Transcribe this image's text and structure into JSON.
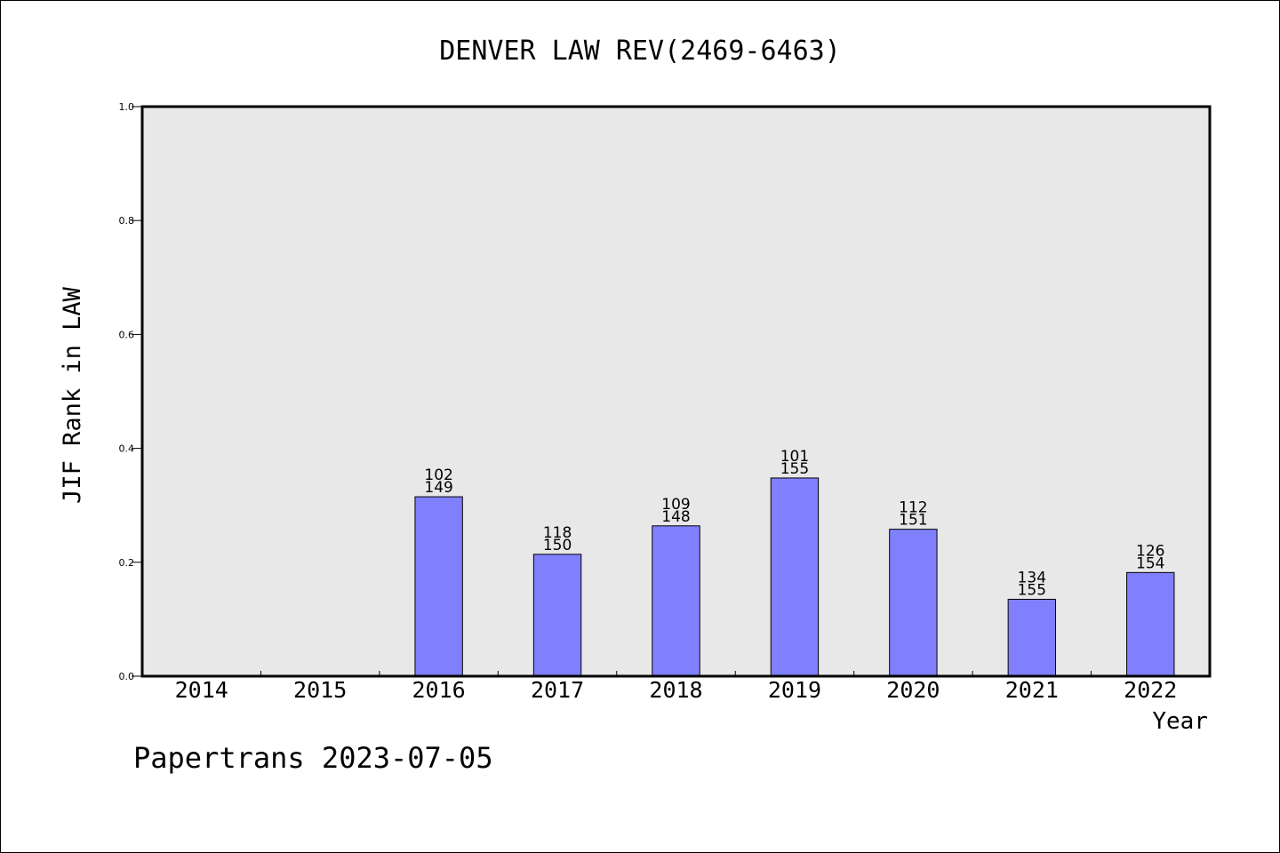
{
  "chart_data": {
    "type": "bar",
    "title": "DENVER LAW REV(2469-6463)",
    "xlabel": "Year",
    "ylabel": "JIF Rank in LAW",
    "footer": "Papertrans 2023-07-05",
    "ylim": [
      0,
      1.0
    ],
    "yticks": [
      "0.0",
      "0.2",
      "0.4",
      "0.6",
      "0.8",
      "1.0"
    ],
    "categories": [
      "2014",
      "2015",
      "2016",
      "2017",
      "2018",
      "2019",
      "2020",
      "2021",
      "2022"
    ],
    "values": [
      null,
      null,
      0.315,
      0.214,
      0.264,
      0.348,
      0.258,
      0.135,
      0.182
    ],
    "rank": [
      null,
      null,
      "102",
      "118",
      "109",
      "101",
      "112",
      "134",
      "126"
    ],
    "total": [
      null,
      null,
      "149",
      "150",
      "148",
      "155",
      "151",
      "155",
      "154"
    ],
    "grid": false,
    "colors": {
      "plot_bg": "#e8e8e8",
      "bar_fill": "#8080ff",
      "bar_stroke": "#000000",
      "text": "#000000"
    }
  }
}
